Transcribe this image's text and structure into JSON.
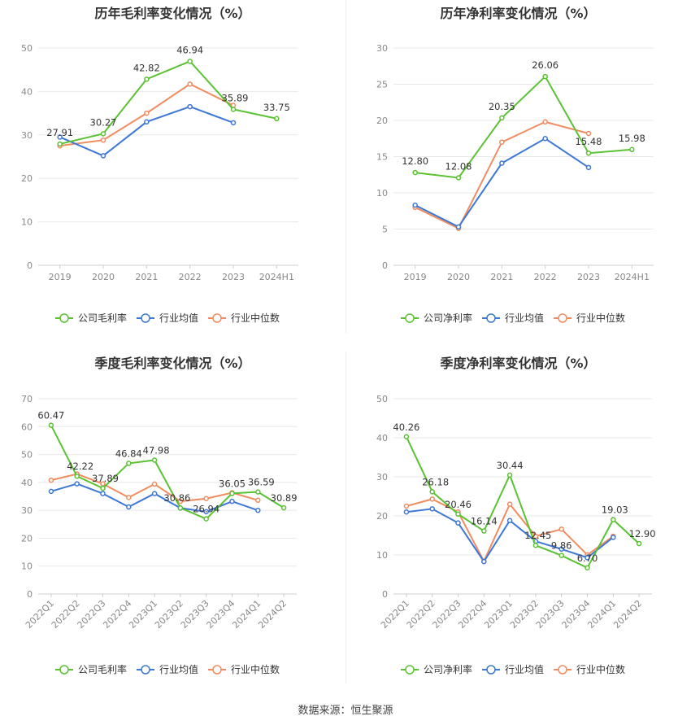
{
  "source_text": "数据来源：恒生聚源",
  "colors": {
    "company": "#5ac233",
    "industry_avg": "#3e78d6",
    "industry_median": "#f08c60"
  },
  "chart_data": [
    {
      "type": "line",
      "title": "历年毛利率变化情况（%）",
      "categories": [
        "2019",
        "2020",
        "2021",
        "2022",
        "2023",
        "2024H1"
      ],
      "ylim": [
        0,
        50
      ],
      "yticks": [
        0,
        10,
        20,
        30,
        40,
        50
      ],
      "grid": true,
      "legend_position": "bottom",
      "series": [
        {
          "name": "公司毛利率",
          "key": "company",
          "values": [
            27.91,
            30.27,
            42.82,
            46.94,
            35.89,
            33.75
          ],
          "labels": [
            "27.91",
            "30.27",
            "42.82",
            "46.94",
            "35.89",
            "33.75"
          ]
        },
        {
          "name": "行业均值",
          "key": "industry_avg",
          "values": [
            29.5,
            25.2,
            33.0,
            36.5,
            32.8,
            null
          ]
        },
        {
          "name": "行业中位数",
          "key": "industry_median",
          "values": [
            27.5,
            28.8,
            35.0,
            41.7,
            36.8,
            null
          ]
        }
      ]
    },
    {
      "type": "line",
      "title": "历年净利率变化情况（%）",
      "categories": [
        "2019",
        "2020",
        "2021",
        "2022",
        "2023",
        "2024H1"
      ],
      "ylim": [
        0,
        30
      ],
      "yticks": [
        0,
        5,
        10,
        15,
        20,
        25,
        30
      ],
      "grid": true,
      "legend_position": "bottom",
      "series": [
        {
          "name": "公司净利率",
          "key": "company",
          "values": [
            12.8,
            12.08,
            20.35,
            26.06,
            15.48,
            15.98
          ],
          "labels": [
            "12.80",
            "12.08",
            "20.35",
            "26.06",
            "15.48",
            "15.98"
          ]
        },
        {
          "name": "行业均值",
          "key": "industry_avg",
          "values": [
            8.3,
            5.3,
            14.1,
            17.5,
            13.5,
            null
          ]
        },
        {
          "name": "行业中位数",
          "key": "industry_median",
          "values": [
            8.0,
            5.1,
            17.0,
            19.8,
            18.2,
            null
          ]
        }
      ]
    },
    {
      "type": "line",
      "title": "季度毛利率变化情况（%）",
      "categories": [
        "2022Q1",
        "2022Q2",
        "2022Q3",
        "2022Q4",
        "2023Q1",
        "2023Q2",
        "2023Q3",
        "2023Q4",
        "2024Q1",
        "2024Q2"
      ],
      "ylim": [
        0,
        70
      ],
      "yticks": [
        0,
        10,
        20,
        30,
        40,
        50,
        60,
        70
      ],
      "grid": true,
      "legend_position": "bottom",
      "series": [
        {
          "name": "公司毛利率",
          "key": "company",
          "values": [
            60.47,
            42.22,
            37.89,
            46.84,
            47.98,
            30.86,
            26.94,
            36.05,
            36.59,
            30.89
          ],
          "labels": [
            "60.47",
            "42.22",
            "37.89",
            "46.84",
            "47.98",
            "30.86",
            "26.94",
            "36.05",
            "36.59",
            "30.89"
          ]
        },
        {
          "name": "行业均值",
          "key": "industry_avg",
          "values": [
            36.8,
            39.5,
            36.0,
            31.2,
            36.0,
            30.8,
            29.5,
            33.2,
            30.0,
            null
          ]
        },
        {
          "name": "行业中位数",
          "key": "industry_median",
          "values": [
            40.8,
            43.0,
            39.5,
            34.6,
            39.4,
            33.2,
            34.2,
            36.3,
            33.6,
            null
          ]
        }
      ]
    },
    {
      "type": "line",
      "title": "季度净利率变化情况（%）",
      "categories": [
        "2022Q1",
        "2022Q2",
        "2022Q3",
        "2022Q4",
        "2023Q1",
        "2023Q2",
        "2023Q3",
        "2023Q4",
        "2024Q1",
        "2024Q2"
      ],
      "ylim": [
        0,
        50
      ],
      "yticks": [
        0,
        10,
        20,
        30,
        40,
        50
      ],
      "grid": true,
      "legend_position": "bottom",
      "series": [
        {
          "name": "公司净利率",
          "key": "company",
          "values": [
            40.26,
            26.18,
            20.46,
            16.14,
            30.44,
            12.45,
            9.86,
            6.7,
            19.03,
            12.9
          ],
          "labels": [
            "40.26",
            "26.18",
            "20.46",
            "16.14",
            "30.44",
            "12.45",
            "9.86",
            "6.70",
            "19.03",
            "12.90"
          ]
        },
        {
          "name": "行业均值",
          "key": "industry_avg",
          "values": [
            21.0,
            21.8,
            18.2,
            8.3,
            18.8,
            13.5,
            11.5,
            9.3,
            14.5,
            null
          ]
        },
        {
          "name": "行业中位数",
          "key": "industry_median",
          "values": [
            22.5,
            24.3,
            21.0,
            8.4,
            23.0,
            14.8,
            16.6,
            10.0,
            14.8,
            null
          ]
        }
      ]
    }
  ]
}
